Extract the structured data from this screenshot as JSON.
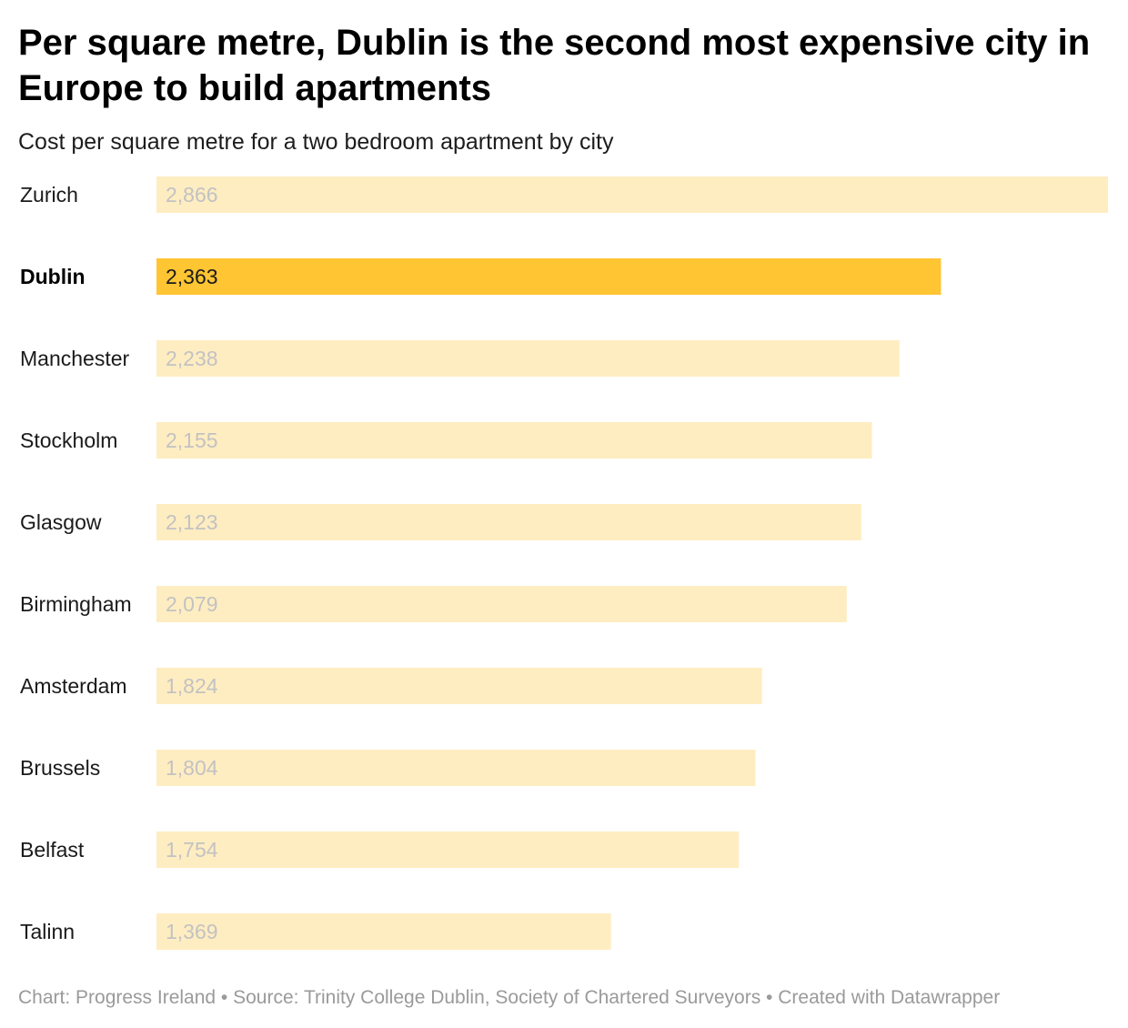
{
  "chart_data": {
    "type": "bar",
    "orientation": "horizontal",
    "title": "Per square metre, Dublin is the second most expensive city in Europe to build apartments",
    "subtitle": "Cost per square metre for a two bedroom apartment by city",
    "categories": [
      "Zurich",
      "Dublin",
      "Manchester",
      "Stockholm",
      "Glasgow",
      "Birmingham",
      "Amsterdam",
      "Brussels",
      "Belfast",
      "Talinn"
    ],
    "values": [
      2866,
      2363,
      2238,
      2155,
      2123,
      2079,
      1824,
      1804,
      1754,
      1369
    ],
    "value_labels": [
      "2,866",
      "2,363",
      "2,238",
      "2,155",
      "2,123",
      "2,079",
      "1,824",
      "1,804",
      "1,754",
      "1,369"
    ],
    "highlight": "Dublin",
    "xlim": [
      0,
      2866
    ],
    "grid": false,
    "colors": {
      "bar": "#ffedc2",
      "bar_highlight": "#ffc533",
      "label": "#c2c2c2",
      "label_highlight": "#1a1a1a"
    }
  },
  "footer": {
    "text": "Chart: Progress Ireland • Source: Trinity College Dublin, Society of Chartered Surveyors • Created with Datawrapper"
  }
}
